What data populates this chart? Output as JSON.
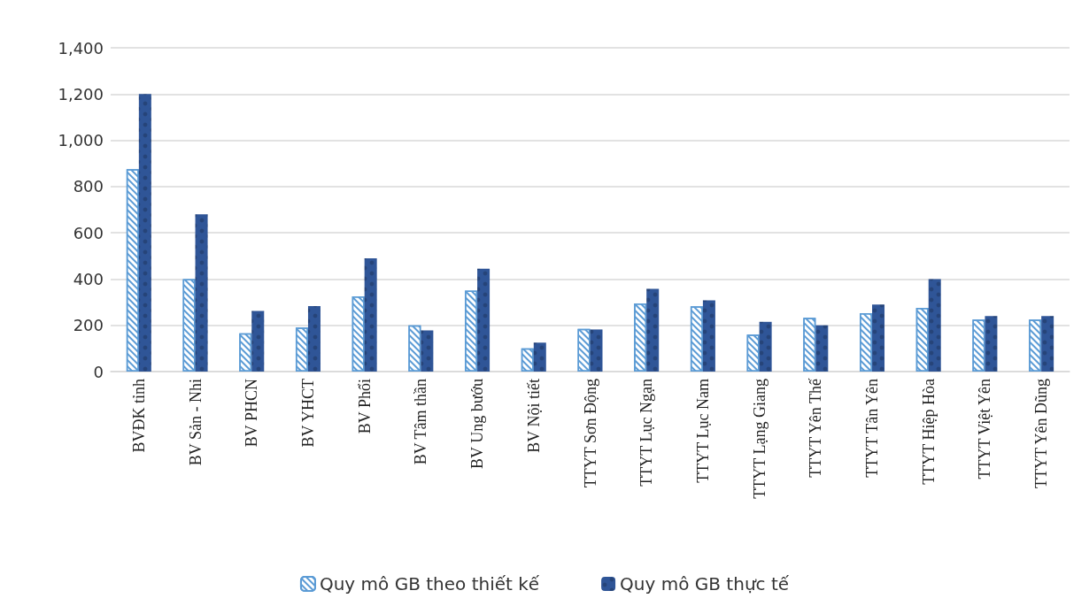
{
  "chart_data": {
    "type": "bar",
    "categories": [
      "BVĐK tỉnh",
      "BV Sản - Nhi",
      "BV PHCN",
      "BV YHCT",
      "BV Phổi",
      "BV Tâm thần",
      "BV Ung bướu",
      "BV Nội tiết",
      "TTYT Sơn Động",
      "TTYT Lục Ngạn",
      "TTYT Lục Nam",
      "TTYT Lạng Giang",
      "TTYT Yên Thế",
      "TTYT Tân Yên",
      "TTYT Hiệp Hòa",
      "TTYT Việt Yên",
      "TTYT Yên Dũng"
    ],
    "series": [
      {
        "name": "Quy mô GB theo thiết kế",
        "color": "#5b9bd5",
        "values": [
          875,
          400,
          165,
          190,
          325,
          200,
          350,
          100,
          185,
          295,
          282,
          160,
          232,
          252,
          275,
          225,
          225
        ]
      },
      {
        "name": "Quy mô GB thực tế",
        "color": "#2f5597",
        "values": [
          1200,
          680,
          262,
          283,
          490,
          178,
          445,
          125,
          182,
          358,
          308,
          215,
          200,
          290,
          400,
          240,
          240
        ]
      }
    ],
    "ylim": [
      0,
      1400
    ],
    "yticks": [
      {
        "value": 0,
        "label": "0"
      },
      {
        "value": 200,
        "label": "200"
      },
      {
        "value": 400,
        "label": "400"
      },
      {
        "value": 600,
        "label": "600"
      },
      {
        "value": 800,
        "label": "800"
      },
      {
        "value": 1000,
        "label": "1,000"
      },
      {
        "value": 1200,
        "label": "1,200"
      },
      {
        "value": 1400,
        "label": "1,400"
      }
    ],
    "grid": "y",
    "legend": "bottom"
  }
}
